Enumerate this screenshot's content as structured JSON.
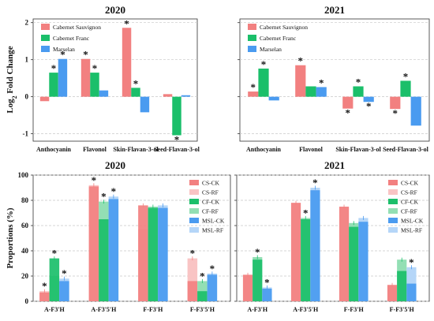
{
  "colors": {
    "cabernet_sauvignon": "#f28080",
    "cabernet_franc": "#1bbf6a",
    "marselan": "#4a9bf0",
    "cs_ck": "#f28080",
    "cs_rf": "#f9c4c4",
    "cf_ck": "#1bbf6a",
    "cf_rf": "#93dfb4",
    "msl_ck": "#4a9bf0",
    "msl_rf": "#b5d6f8"
  },
  "chart_data": [
    {
      "type": "bar",
      "title": "2020",
      "ylabel": "Log",
      "ylabel_sub": "2",
      "ylabel_rest": " Fold Change",
      "ylim": [
        -1.2,
        2.1
      ],
      "yticks": [
        "-1",
        "0",
        "1",
        "2"
      ],
      "ytick_values": [
        -1,
        0,
        1,
        2
      ],
      "grid": true,
      "legend": "top-left",
      "categories": [
        "Anthocyanin",
        "Flavonol",
        "Skin-Flavan-3-ol",
        "Seed-Flavan-3-ol"
      ],
      "series": [
        {
          "name": "Cabernet Sauvignon",
          "color_key": "cabernet_sauvignon",
          "values": [
            -0.12,
            1.02,
            1.86,
            0.07
          ],
          "stars": [
            false,
            true,
            true,
            false
          ]
        },
        {
          "name": "Cabernet Franc",
          "color_key": "cabernet_franc",
          "values": [
            0.65,
            0.65,
            0.24,
            -1.04
          ],
          "stars": [
            true,
            true,
            true,
            true
          ]
        },
        {
          "name": "Marselan",
          "color_key": "marselan",
          "values": [
            1.02,
            0.17,
            -0.42,
            0.04
          ],
          "stars": [
            true,
            false,
            false,
            false
          ]
        }
      ],
      "star_label": "*"
    },
    {
      "type": "bar",
      "title": "2021",
      "ylim": [
        -1.2,
        2.1
      ],
      "ytick_values": [
        -1,
        0,
        1,
        2
      ],
      "grid": true,
      "legend": "top-left",
      "categories": [
        "Anthocyanin",
        "Flavonol",
        "Skin-Flavan-3-ol",
        "Seed-Flavan-3-ol"
      ],
      "series": [
        {
          "name": "Cabernet Sauvignon",
          "color_key": "cabernet_sauvignon",
          "values": [
            0.14,
            0.85,
            -0.32,
            -0.33
          ],
          "stars": [
            true,
            true,
            true,
            true
          ]
        },
        {
          "name": "Cabernet Franc",
          "color_key": "cabernet_franc",
          "values": [
            0.76,
            0.28,
            0.28,
            0.43
          ],
          "stars": [
            true,
            false,
            true,
            true
          ]
        },
        {
          "name": "Marselan",
          "color_key": "marselan",
          "values": [
            -0.1,
            0.26,
            -0.14,
            -0.78
          ],
          "stars": [
            false,
            true,
            true,
            false
          ]
        }
      ],
      "star_label": "*"
    },
    {
      "type": "bar",
      "title": "2020",
      "ylabel": "Proportions (%)",
      "ylim": [
        0,
        100
      ],
      "yticks": [
        "0",
        "20",
        "40",
        "60",
        "80",
        "100"
      ],
      "ytick_values": [
        0,
        20,
        40,
        60,
        80,
        100
      ],
      "grid": true,
      "legend": "top-right",
      "categories": [
        "A-F3'H",
        "A-F3'5'H",
        "F-F3'H",
        "F-F3'5'H"
      ],
      "cultivars": [
        {
          "rf_name": "CS-RF",
          "ck_name": "CS-CK",
          "rf_key": "cs_rf",
          "ck_key": "cs_ck",
          "ck": [
            7,
            91,
            76,
            16
          ],
          "rf": [
            8,
            92,
            57,
            34
          ],
          "stars": [
            true,
            true,
            false,
            true
          ]
        },
        {
          "rf_name": "CF-RF",
          "ck_name": "CF-CK",
          "rf_key": "cf_rf",
          "ck_key": "cf_ck",
          "ck": [
            34,
            65,
            74,
            8
          ],
          "rf": [
            20,
            79,
            75,
            16
          ],
          "stars": [
            true,
            true,
            false,
            true
          ]
        },
        {
          "rf_name": "MSL-RF",
          "ck_name": "MSL-CK",
          "rf_key": "msl_rf",
          "ck_key": "msl_ck",
          "ck": [
            16,
            81,
            74,
            21
          ],
          "rf": [
            18,
            83,
            76,
            22
          ],
          "stars": [
            true,
            true,
            false,
            true
          ]
        }
      ],
      "legend_entries": [
        "CS-CK",
        "CS-RF",
        "CF-CK",
        "CF-RF",
        "MSL-CK",
        "MSL-RF"
      ],
      "star_label": "*"
    },
    {
      "type": "bar",
      "title": "2021",
      "ylim": [
        0,
        100
      ],
      "ytick_values": [
        0,
        20,
        40,
        60,
        80,
        100
      ],
      "grid": true,
      "legend": "top-right",
      "categories": [
        "A-F3'H",
        "A-F3'5'H",
        "F-F3'H",
        "F-F3'5'H"
      ],
      "cultivars": [
        {
          "rf_name": "CS-RF",
          "ck_name": "CS-CK",
          "rf_key": "cs_rf",
          "ck_key": "cs_ck",
          "ck": [
            21,
            78,
            75,
            13
          ],
          "rf": [
            21,
            78,
            74,
            12
          ],
          "stars": [
            false,
            false,
            false,
            false
          ]
        },
        {
          "rf_name": "CF-RF",
          "ck_name": "CF-CK",
          "rf_key": "cf_rf",
          "ck_key": "cf_ck",
          "ck": [
            33,
            65,
            59,
            24
          ],
          "rf": [
            35,
            66,
            62,
            33
          ],
          "stars": [
            true,
            true,
            false,
            false
          ]
        },
        {
          "rf_name": "MSL-RF",
          "ck_name": "MSL-CK",
          "rf_key": "msl_rf",
          "ck_key": "msl_ck",
          "ck": [
            10,
            88,
            63,
            14
          ],
          "rf": [
            11,
            90,
            66,
            27
          ],
          "stars": [
            true,
            true,
            false,
            true
          ]
        }
      ],
      "legend_entries": [
        "CS-CK",
        "CS-RF",
        "CF-CK",
        "CF-RF",
        "MSL-CK",
        "MSL-RF"
      ],
      "star_label": "*"
    }
  ]
}
